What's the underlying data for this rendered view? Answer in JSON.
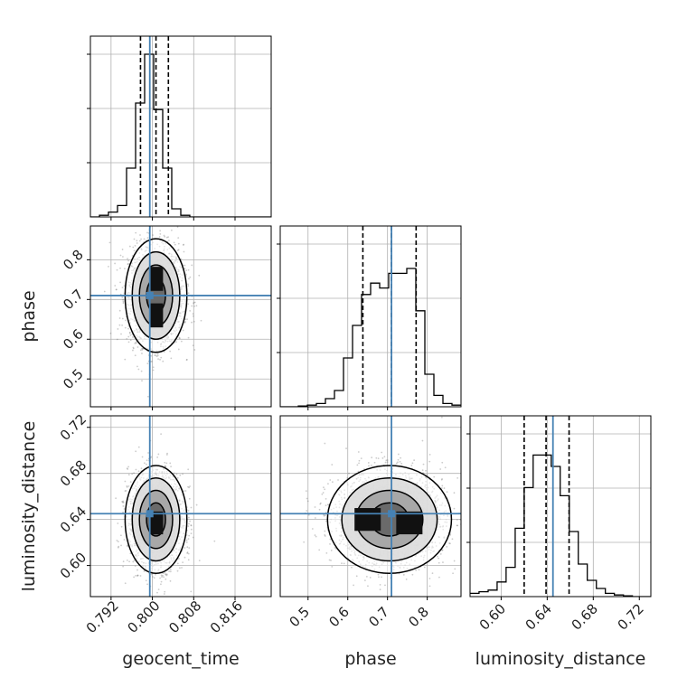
{
  "chart_data": {
    "type": "corner",
    "parameters": [
      "geocent_time",
      "phase",
      "luminosity_distance"
    ],
    "truths": [
      0.7995,
      0.71,
      0.645
    ],
    "truth_color": "#4682b4",
    "ranges": [
      [
        0.788,
        0.823
      ],
      [
        0.43,
        0.885
      ],
      [
        0.573,
        0.73
      ]
    ],
    "ticks": {
      "geocent_time": [
        0.792,
        0.8,
        0.808,
        0.816
      ],
      "phase": [
        0.5,
        0.6,
        0.7,
        0.8
      ],
      "luminosity_distance": [
        0.6,
        0.64,
        0.68,
        0.72
      ]
    },
    "tick_labels": {
      "geocent_time": [
        "0.792",
        "0.800",
        "0.808",
        "0.816"
      ],
      "phase": [
        "0.5",
        "0.6",
        "0.7",
        "0.8"
      ],
      "luminosity_distance": [
        "0.60",
        "0.64",
        "0.68",
        "0.72"
      ]
    },
    "quantiles": {
      "geocent_time": [
        0.7977,
        0.8007,
        0.8031
      ],
      "phase": [
        0.638,
        0.71,
        0.772
      ],
      "luminosity_distance": [
        0.62,
        0.639,
        0.659
      ]
    },
    "histograms": {
      "geocent_time": {
        "edges": [
          0.788,
          0.78975,
          0.7915,
          0.79325,
          0.795,
          0.79675,
          0.7985,
          0.80025,
          0.802,
          0.80375,
          0.8055,
          0.80725,
          0.809,
          0.81075,
          0.8125,
          0.81425,
          0.816,
          0.81775,
          0.8195,
          0.82125,
          0.823
        ],
        "counts": [
          0.0,
          0.01,
          0.03,
          0.07,
          0.3,
          0.7,
          1.0,
          0.66,
          0.3,
          0.05,
          0.01,
          0.0,
          0.0,
          0.0,
          0.0,
          0.0,
          0.0,
          0.0,
          0.0,
          0.0
        ]
      },
      "phase": {
        "edges": [
          0.43,
          0.45275,
          0.4755,
          0.49825,
          0.521,
          0.54375,
          0.5665,
          0.58925,
          0.612,
          0.63475,
          0.6575,
          0.68025,
          0.703,
          0.72575,
          0.7485,
          0.77125,
          0.794,
          0.81675,
          0.8395,
          0.86225,
          0.885
        ],
        "counts": [
          0.0,
          0.0,
          0.005,
          0.01,
          0.02,
          0.05,
          0.1,
          0.3,
          0.5,
          0.69,
          0.76,
          0.73,
          0.82,
          0.82,
          0.85,
          0.59,
          0.2,
          0.07,
          0.02,
          0.01
        ]
      },
      "luminosity_distance": {
        "edges": [
          0.573,
          0.5808,
          0.5887,
          0.5965,
          0.6043,
          0.6122,
          0.62,
          0.6278,
          0.6357,
          0.6435,
          0.6513,
          0.6592,
          0.667,
          0.6748,
          0.6827,
          0.6905,
          0.6983,
          0.7062,
          0.714,
          0.7218,
          0.73
        ],
        "counts": [
          0.02,
          0.03,
          0.04,
          0.09,
          0.18,
          0.42,
          0.67,
          0.87,
          0.87,
          0.8,
          0.62,
          0.4,
          0.2,
          0.1,
          0.05,
          0.02,
          0.01,
          0.005,
          0.0,
          0.0
        ]
      }
    },
    "density": [
      {
        "x": "geocent_time",
        "y": "phase",
        "cx": 0.8007,
        "cy": 0.71,
        "sx": 0.0023,
        "sy": 0.055,
        "peaks": [
          [
            0.8008,
            0.752
          ],
          [
            0.8008,
            0.66
          ]
        ]
      },
      {
        "x": "geocent_time",
        "y": "luminosity_distance",
        "cx": 0.8007,
        "cy": 0.64,
        "sx": 0.0023,
        "sy": 0.018,
        "peaks": [
          [
            0.8008,
            0.637
          ]
        ]
      },
      {
        "x": "phase",
        "y": "luminosity_distance",
        "cx": 0.705,
        "cy": 0.64,
        "sx": 0.06,
        "sy": 0.018,
        "peaks": [
          [
            0.65,
            0.64
          ],
          [
            0.755,
            0.637
          ]
        ]
      }
    ],
    "grid": true
  }
}
